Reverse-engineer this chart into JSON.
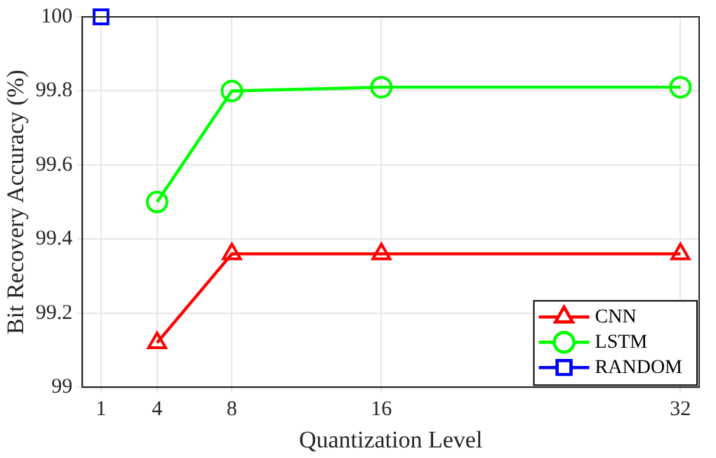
{
  "chart_data": {
    "type": "line",
    "xlabel": "Quantization Level",
    "ylabel": "Bit Recovery Accuracy (%)",
    "xlim": [
      0,
      33
    ],
    "xticks": [
      1,
      4,
      8,
      16,
      32
    ],
    "ylim": [
      99,
      100
    ],
    "yticks": [
      99,
      99.2,
      99.4,
      99.6,
      99.8,
      100
    ],
    "grid": true,
    "legend": "bottom right",
    "line_style": "solid",
    "series": [
      {
        "name": "CNN",
        "color": "#ff0000",
        "marker": "triangle",
        "x": [
          4,
          8,
          16,
          32
        ],
        "values": [
          99.12,
          99.36,
          99.36,
          99.36
        ]
      },
      {
        "name": "LSTM",
        "color": "#00ff00",
        "marker": "circle",
        "x": [
          4,
          8,
          16,
          32
        ],
        "values": [
          99.5,
          99.8,
          99.81,
          99.81
        ]
      },
      {
        "name": "RANDOM",
        "color": "#0000ff",
        "marker": "square",
        "x": [
          1
        ],
        "values": [
          100
        ]
      }
    ]
  }
}
